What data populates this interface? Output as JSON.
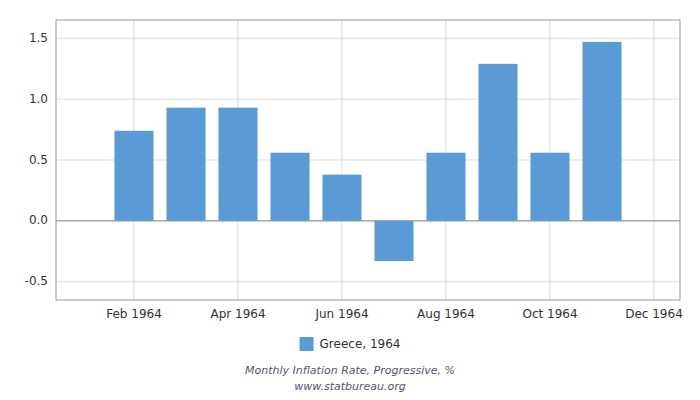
{
  "chart_data": {
    "type": "bar",
    "title": "Monthly Inflation Rate, Progressive, %",
    "annotations": [
      "www.statbureau.org"
    ],
    "categories": [
      null,
      "Feb 1964",
      null,
      "Apr 1964",
      null,
      "Jun 1964",
      null,
      "Aug 1964",
      null,
      "Oct 1964",
      null,
      "Dec 1964"
    ],
    "series": [
      {
        "name": "Greece, 1964",
        "color": "#5b9bd5",
        "values": [
          0.0,
          0.74,
          0.93,
          0.93,
          0.56,
          0.38,
          -0.33,
          0.56,
          1.29,
          0.56,
          1.47,
          0.0
        ]
      }
    ],
    "ylim": [
      -0.65,
      1.65
    ],
    "yticks": [
      -0.5,
      {
        "value": 0.0,
        "label": "0.0"
      },
      0.5,
      {
        "value": 1.0,
        "label": "1.0"
      },
      1.5
    ],
    "grid": true,
    "legend": "bottom"
  }
}
